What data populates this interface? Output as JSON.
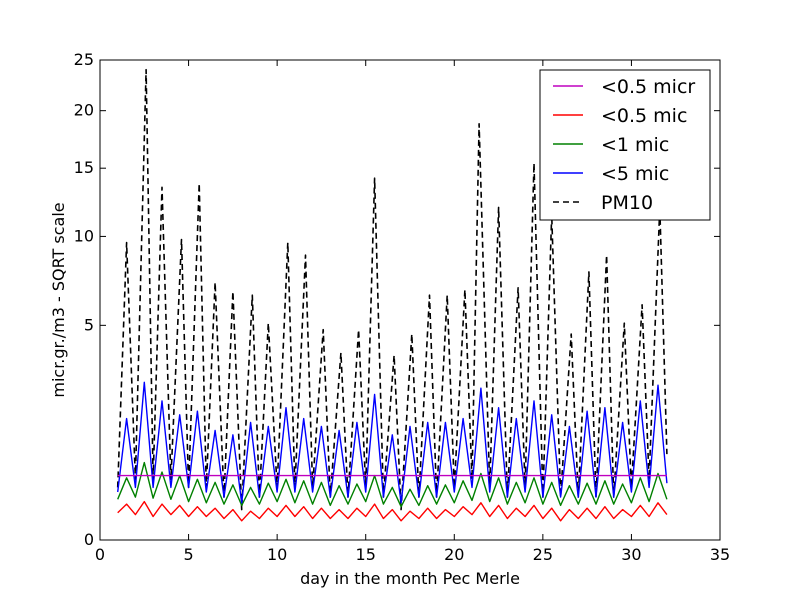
{
  "chart_data": {
    "type": "line",
    "title": "",
    "xlabel": "day in the month Pec Merle",
    "ylabel": "micr.gr./m3 - SQRT scale",
    "xlim": [
      0,
      35
    ],
    "ylim": [
      0,
      25
    ],
    "yscale": "sqrt",
    "x_ticks": [
      0,
      5,
      10,
      15,
      20,
      25,
      30,
      35
    ],
    "y_ticks": [
      0,
      5,
      10,
      15,
      20,
      25
    ],
    "grid": false,
    "legend_position": "top-right",
    "series": [
      {
        "name": "<0.5 micr",
        "color": "#bf00bf",
        "style": "solid",
        "x": [
          1,
          32
        ],
        "values": [
          0.45,
          0.45
        ]
      },
      {
        "name": "<0.5 mic",
        "color": "#ff0000",
        "style": "solid",
        "x": [
          1.0,
          1.5,
          2.0,
          2.5,
          3.0,
          3.5,
          4.0,
          4.5,
          5.0,
          5.5,
          6.0,
          6.5,
          7.0,
          7.5,
          8.0,
          8.5,
          9.0,
          9.5,
          10.0,
          10.5,
          11.0,
          11.5,
          12.0,
          12.5,
          13.0,
          13.5,
          14.0,
          14.5,
          15.0,
          15.5,
          16.0,
          16.5,
          17.0,
          17.5,
          18.0,
          18.5,
          19.0,
          19.5,
          20.0,
          20.5,
          21.0,
          21.5,
          22.0,
          22.5,
          23.0,
          23.5,
          24.0,
          24.5,
          25.0,
          25.5,
          26.0,
          26.5,
          27.0,
          27.5,
          28.0,
          28.5,
          29.0,
          29.5,
          30.0,
          30.5,
          31.0,
          31.5,
          32.0
        ],
        "values": [
          0.08,
          0.14,
          0.07,
          0.16,
          0.06,
          0.14,
          0.07,
          0.13,
          0.06,
          0.12,
          0.06,
          0.11,
          0.05,
          0.1,
          0.04,
          0.09,
          0.05,
          0.11,
          0.06,
          0.13,
          0.06,
          0.12,
          0.05,
          0.11,
          0.05,
          0.1,
          0.05,
          0.11,
          0.06,
          0.14,
          0.05,
          0.1,
          0.04,
          0.09,
          0.05,
          0.11,
          0.05,
          0.1,
          0.06,
          0.12,
          0.07,
          0.15,
          0.06,
          0.13,
          0.05,
          0.11,
          0.06,
          0.13,
          0.05,
          0.11,
          0.04,
          0.1,
          0.05,
          0.11,
          0.05,
          0.12,
          0.05,
          0.1,
          0.06,
          0.13,
          0.06,
          0.15,
          0.07
        ]
      },
      {
        "name": "<1 mic",
        "color": "#008000",
        "style": "solid",
        "x": [
          1.0,
          1.5,
          2.0,
          2.5,
          3.0,
          3.5,
          4.0,
          4.5,
          5.0,
          5.5,
          6.0,
          6.5,
          7.0,
          7.5,
          8.0,
          8.5,
          9.0,
          9.5,
          10.0,
          10.5,
          11.0,
          11.5,
          12.0,
          12.5,
          13.0,
          13.5,
          14.0,
          14.5,
          15.0,
          15.5,
          16.0,
          16.5,
          17.0,
          17.5,
          18.0,
          18.5,
          19.0,
          19.5,
          20.0,
          20.5,
          21.0,
          21.5,
          22.0,
          22.5,
          23.0,
          23.5,
          24.0,
          24.5,
          25.0,
          25.5,
          26.0,
          26.5,
          27.0,
          27.5,
          28.0,
          28.5,
          29.0,
          29.5,
          30.0,
          30.5,
          31.0,
          31.5,
          32.0
        ],
        "values": [
          0.18,
          0.42,
          0.2,
          0.65,
          0.19,
          0.5,
          0.18,
          0.45,
          0.16,
          0.4,
          0.15,
          0.36,
          0.14,
          0.33,
          0.13,
          0.3,
          0.14,
          0.35,
          0.16,
          0.4,
          0.15,
          0.38,
          0.14,
          0.36,
          0.13,
          0.32,
          0.14,
          0.34,
          0.16,
          0.45,
          0.14,
          0.3,
          0.12,
          0.28,
          0.13,
          0.32,
          0.14,
          0.33,
          0.15,
          0.38,
          0.17,
          0.48,
          0.16,
          0.42,
          0.14,
          0.36,
          0.15,
          0.42,
          0.14,
          0.36,
          0.13,
          0.32,
          0.14,
          0.35,
          0.14,
          0.38,
          0.14,
          0.34,
          0.15,
          0.42,
          0.16,
          0.48,
          0.18
        ]
      },
      {
        "name": "<5 mic",
        "color": "#0000ff",
        "style": "solid",
        "x": [
          1.0,
          1.5,
          2.0,
          2.5,
          3.0,
          3.5,
          4.0,
          4.5,
          5.0,
          5.5,
          6.0,
          6.5,
          7.0,
          7.5,
          8.0,
          8.5,
          9.0,
          9.5,
          10.0,
          10.5,
          11.0,
          11.5,
          12.0,
          12.5,
          13.0,
          13.5,
          14.0,
          14.5,
          15.0,
          15.5,
          16.0,
          16.5,
          17.0,
          17.5,
          18.0,
          18.5,
          19.0,
          19.5,
          20.0,
          20.5,
          21.0,
          21.5,
          22.0,
          22.5,
          23.0,
          23.5,
          24.0,
          24.5,
          25.0,
          25.5,
          26.0,
          26.5,
          27.0,
          27.5,
          28.0,
          28.5,
          29.0,
          29.5,
          30.0,
          30.5,
          31.0,
          31.5,
          32.0
        ],
        "values": [
          0.25,
          1.6,
          0.3,
          2.7,
          0.3,
          2.1,
          0.3,
          1.7,
          0.3,
          1.8,
          0.25,
          1.3,
          0.2,
          1.2,
          0.15,
          1.5,
          0.2,
          1.4,
          0.25,
          1.9,
          0.25,
          1.6,
          0.25,
          1.4,
          0.2,
          1.3,
          0.2,
          1.5,
          0.25,
          2.3,
          0.2,
          1.2,
          0.15,
          1.4,
          0.2,
          1.5,
          0.2,
          1.5,
          0.25,
          1.6,
          0.3,
          2.5,
          0.25,
          1.9,
          0.2,
          1.6,
          0.25,
          2.1,
          0.2,
          1.7,
          0.2,
          1.4,
          0.2,
          1.8,
          0.2,
          1.9,
          0.2,
          1.5,
          0.25,
          2.1,
          0.3,
          2.6,
          0.35
        ]
      },
      {
        "name": "PM10",
        "color": "#000000",
        "style": "dashed",
        "x": [
          1.0,
          1.5,
          2.0,
          2.6,
          3.0,
          3.5,
          4.0,
          4.6,
          5.0,
          5.6,
          6.0,
          6.5,
          7.0,
          7.5,
          8.0,
          8.6,
          9.0,
          9.5,
          10.0,
          10.6,
          11.0,
          11.6,
          12.0,
          12.6,
          13.0,
          13.6,
          14.0,
          14.6,
          15.0,
          15.5,
          16.0,
          16.6,
          17.0,
          17.6,
          18.0,
          18.6,
          19.0,
          19.6,
          20.0,
          20.6,
          21.0,
          21.4,
          22.0,
          22.5,
          23.0,
          23.6,
          24.0,
          24.5,
          25.0,
          25.5,
          26.0,
          26.6,
          27.0,
          27.6,
          28.0,
          28.6,
          29.0,
          29.6,
          30.0,
          30.6,
          31.0,
          31.6,
          32.0
        ],
        "values": [
          0.3,
          9.6,
          0.4,
          24.0,
          0.4,
          13.5,
          0.4,
          9.8,
          0.3,
          13.8,
          0.3,
          7.2,
          0.2,
          6.7,
          0.1,
          6.5,
          0.2,
          5.1,
          0.3,
          9.6,
          0.3,
          8.8,
          0.3,
          4.8,
          0.2,
          3.8,
          0.2,
          4.8,
          0.3,
          14.2,
          0.2,
          3.7,
          0.1,
          4.6,
          0.2,
          6.5,
          0.2,
          6.5,
          0.3,
          6.8,
          0.4,
          18.8,
          0.3,
          12.0,
          0.2,
          6.9,
          0.3,
          15.4,
          0.2,
          11.5,
          0.2,
          4.6,
          0.2,
          7.8,
          0.2,
          8.8,
          0.2,
          5.1,
          0.3,
          6.0,
          0.4,
          12.0,
          0.8
        ]
      }
    ]
  }
}
